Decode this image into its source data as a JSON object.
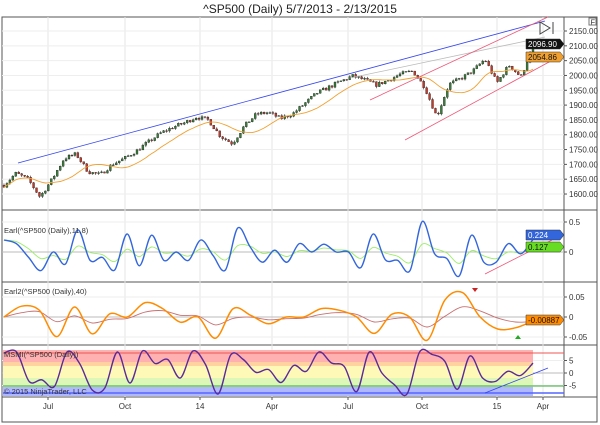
{
  "window": {
    "title": "^SP500 (Daily)  5/7/2013 - 2/13/2015"
  },
  "colors": {
    "up": "#3a7a3a",
    "down": "#c0392b",
    "sma": "#f0a030",
    "earl": "#3366dd",
    "earl_signal": "#99ee66",
    "earl2": "#ff8c00",
    "earl2_signal": "#c87070",
    "msmi": "#5a2a9a",
    "trend_blue": "#3344ee",
    "trend_red": "#ee5577",
    "trend_grey": "#bbbbbb"
  },
  "chart_data": [
    {
      "type": "candlestick",
      "name": "^SP500 (Daily)",
      "y_ticks": [
        1600,
        1650,
        1700,
        1750,
        1800,
        1850,
        1900,
        1950,
        2000,
        2050,
        2100,
        2150
      ],
      "ylim": [
        1560,
        2200
      ],
      "close_series": [
        1630,
        1670,
        1650,
        1590,
        1650,
        1720,
        1735,
        1675,
        1665,
        1700,
        1720,
        1745,
        1775,
        1805,
        1825,
        1840,
        1860,
        1850,
        1795,
        1770,
        1830,
        1870,
        1875,
        1855,
        1870,
        1905,
        1940,
        1960,
        1980,
        1998,
        1985,
        1968,
        1985,
        2005,
        2015,
        1960,
        1860,
        1970,
        1990,
        2015,
        2055,
        1975,
        2035,
        1995,
        2100
      ],
      "last_price": "2096.90",
      "sma_last": "2054.86"
    },
    {
      "type": "line",
      "title": "Earl(^SP500 (Daily),11,8)",
      "y_ticks": [
        "0.5",
        "0"
      ],
      "ylim": [
        -0.6,
        0.7
      ],
      "values": [
        0.2,
        0.14,
        -0.09,
        -0.31,
        0,
        -0.2,
        0.37,
        -0.14,
        -0.09,
        -0.3,
        0.3,
        -0.23,
        0.28,
        -0.14,
        0,
        -0.14,
        0.2,
        -0.06,
        -0.3,
        0.4,
        0.09,
        -0.17,
        0.03,
        -0.17,
        0.14,
        0,
        0.13,
        0,
        0,
        -0.26,
        0.3,
        -0.13,
        -0.14,
        -0.31,
        0.51,
        -0.03,
        -0.11,
        -0.4,
        0.28,
        -0.17,
        -0.17,
        0.14,
        -0.03,
        0.21
      ],
      "last_value": "0.224",
      "signal_last": "0.127"
    },
    {
      "type": "line",
      "title": "Earl2(^SP500 (Daily),40)",
      "y_ticks": [
        "0.05",
        "0",
        "-0.05"
      ],
      "ylim": [
        -0.065,
        0.075
      ],
      "values": [
        0,
        0.027,
        0.017,
        -0.049,
        0.025,
        -0.042,
        0.008,
        0,
        0.036,
        0.021,
        -0.013,
        0,
        -0.053,
        0.021,
        0.004,
        -0.017,
        0,
        0,
        0.021,
        0.017,
        0,
        -0.041,
        0.007,
        0,
        -0.058,
        0.042,
        0.061,
        0,
        -0.03,
        -0.027,
        -0.01
      ],
      "last_value": "-0.00887"
    },
    {
      "type": "line",
      "title": "MSMI(^SP500 (Daily))",
      "y_ticks": [
        "5",
        "0",
        "-5"
      ],
      "ylim": [
        -10,
        11
      ],
      "values": [
        8,
        8.4,
        -3.4,
        -2.7,
        -5.4,
        8.4,
        3.8,
        -6.8,
        -6,
        8.4,
        -4,
        8.8,
        3.8,
        5.4,
        -2,
        8.8,
        3.4,
        -8.4,
        7.2,
        5.4,
        0.3,
        1.4,
        -3.8,
        3,
        0.7,
        8.4,
        4,
        2.7,
        -7.4,
        8.4,
        0,
        -4.7,
        -8.4,
        8.4,
        7.4,
        4.7,
        -6.5,
        6.8,
        -2,
        -3.4,
        0.7,
        -1,
        4
      ]
    }
  ],
  "x_axis": {
    "ticks": [
      "Jul",
      "Oct",
      "14",
      "Apr",
      "Jul",
      "Oct",
      "15",
      "Apr"
    ]
  },
  "copyright": "© 2015 NinjaTrader, LLC",
  "icons": {
    "scroll_end": "skip-to-end-icon",
    "properties": "F"
  }
}
